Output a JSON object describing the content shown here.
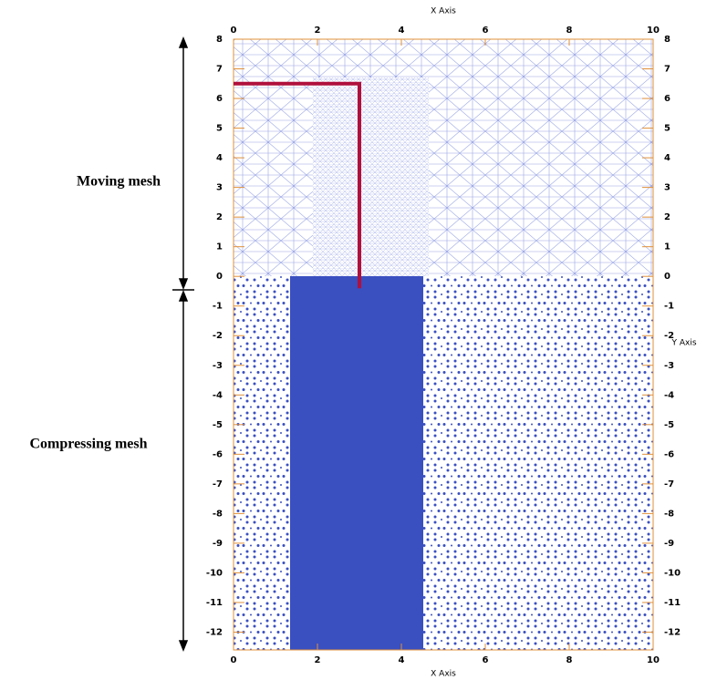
{
  "chart_data": {
    "type": "line",
    "xlabel": "X Axis",
    "ylabel": "Y Axis",
    "annotations": [
      "Moving mesh",
      "Compressing mesh"
    ],
    "xlim": [
      0,
      10
    ],
    "ylim": [
      -12.6,
      8
    ],
    "xticks": [
      0,
      2,
      4,
      6,
      8,
      10
    ],
    "yticks": [
      8,
      7,
      6,
      5,
      4,
      3,
      2,
      1,
      0,
      -1,
      -2,
      -3,
      -4,
      -5,
      -6,
      -7,
      -8,
      -9,
      -10,
      -11,
      -12
    ],
    "axis_color": "#e0903a",
    "series": [
      {
        "color": "#b0103c",
        "x": [
          0,
          3,
          3
        ],
        "y": [
          6.5,
          6.5,
          -0.4
        ]
      }
    ]
  }
}
